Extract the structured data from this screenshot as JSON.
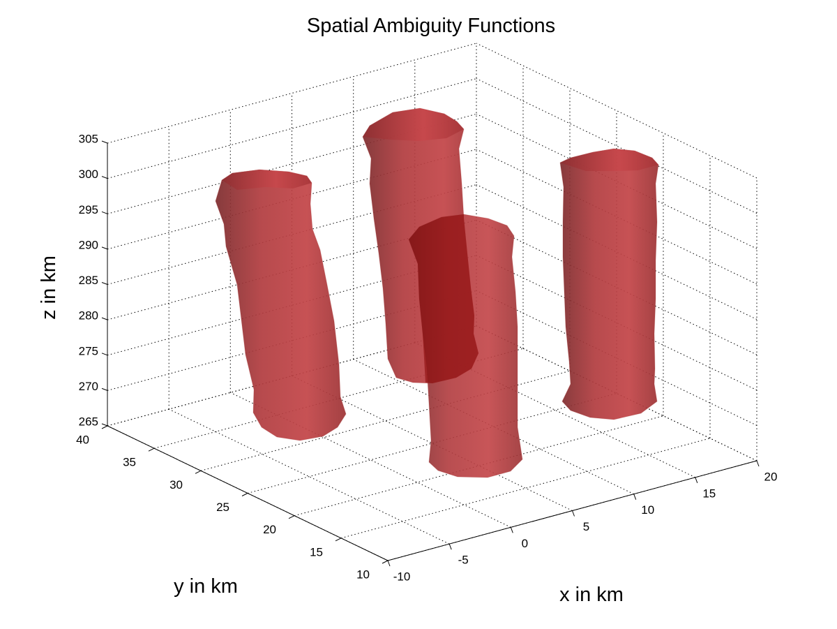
{
  "chart_data": {
    "type": "3d-isosurface",
    "title": "Spatial Ambiguity Functions",
    "xlabel": "x in km",
    "ylabel": "y in km",
    "zlabel": "z in km",
    "xlim": [
      -10,
      20
    ],
    "ylim": [
      10,
      40
    ],
    "zlim": [
      265,
      305
    ],
    "x_ticks": [
      -10,
      -5,
      0,
      5,
      10,
      15,
      20
    ],
    "y_ticks": [
      10,
      15,
      20,
      25,
      30,
      35,
      40
    ],
    "z_ticks": [
      265,
      270,
      275,
      280,
      285,
      290,
      295,
      300,
      305
    ],
    "x_tick_labels": [
      "-10",
      "-5",
      "0",
      "5",
      "10",
      "15",
      "20"
    ],
    "y_tick_labels": [
      "10",
      "15",
      "20",
      "25",
      "30",
      "35",
      "40"
    ],
    "z_tick_labels": [
      "265",
      "270",
      "275",
      "280",
      "285",
      "290",
      "295",
      "300",
      "305"
    ],
    "grid": true,
    "surface_color": "#a32f31",
    "surfaces": [
      {
        "x": -5,
        "y": 30,
        "z_bottom": 266,
        "z_top": 301
      },
      {
        "x": 0,
        "y": 25,
        "z_bottom": 265,
        "z_top": 303
      },
      {
        "x": 7,
        "y": 22,
        "z_bottom": 267,
        "z_top": 306
      },
      {
        "x": 12,
        "y": 15,
        "z_bottom": 268,
        "z_top": 305
      }
    ]
  }
}
